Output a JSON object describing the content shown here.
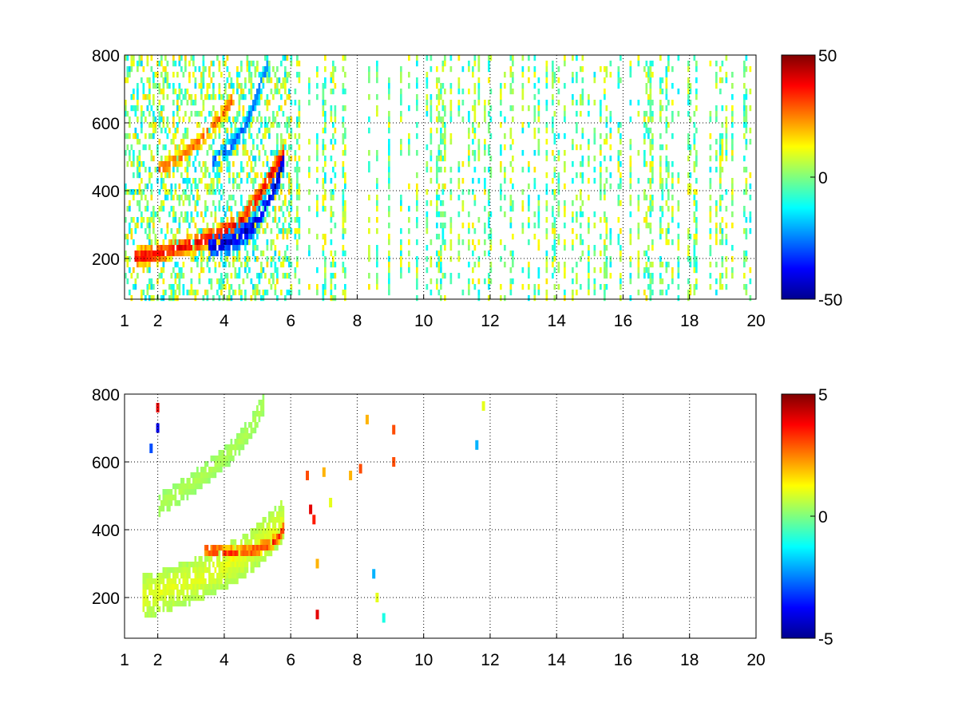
{
  "chart_data": [
    {
      "type": "heatmap",
      "title": "",
      "xlabel": "",
      "ylabel": "",
      "xlim": [
        1,
        20
      ],
      "ylim": [
        80,
        800
      ],
      "grid": true,
      "grid_style": "dotted",
      "xticks": [
        1,
        2,
        4,
        6,
        8,
        10,
        12,
        14,
        16,
        18,
        20
      ],
      "yticks": [
        200,
        400,
        600,
        800
      ],
      "colormap": "jet",
      "colorbar": {
        "min": -50,
        "max": 50,
        "ticks": [
          50,
          0,
          -50
        ]
      },
      "features": [
        {
          "kind": "ridge",
          "x": [
            1.3,
            2,
            3,
            3.7,
            4.5,
            5.0,
            5.4,
            5.8
          ],
          "y": [
            210,
            225,
            250,
            275,
            320,
            390,
            460,
            520
          ],
          "value": 40,
          "width": 18
        },
        {
          "kind": "ridge",
          "x": [
            3.5,
            4.2,
            4.8,
            5.2,
            5.6,
            5.8
          ],
          "y": [
            240,
            260,
            300,
            360,
            440,
            520
          ],
          "value": -45,
          "width": 22
        },
        {
          "kind": "ridge",
          "x": [
            2.0,
            2.7,
            3.3,
            3.8,
            4.3
          ],
          "y": [
            470,
            510,
            560,
            620,
            690
          ],
          "value": 30,
          "width": 14
        },
        {
          "kind": "ridge",
          "x": [
            3.6,
            4.2,
            4.7,
            5.0,
            5.3
          ],
          "y": [
            490,
            540,
            620,
            700,
            790
          ],
          "value": -30,
          "width": 16
        }
      ],
      "noise_region": {
        "x": [
          6,
          20
        ],
        "y": [
          80,
          800
        ],
        "value_range": [
          -15,
          15
        ]
      }
    },
    {
      "type": "heatmap",
      "title": "",
      "xlabel": "",
      "ylabel": "",
      "xlim": [
        1,
        20
      ],
      "ylim": [
        80,
        800
      ],
      "grid": true,
      "grid_style": "dotted",
      "xticks": [
        1,
        2,
        4,
        6,
        8,
        10,
        12,
        14,
        16,
        18,
        20
      ],
      "yticks": [
        200,
        400,
        600,
        800
      ],
      "colormap": "jet",
      "colorbar": {
        "min": -5,
        "max": 5,
        "ticks": [
          5,
          0,
          -5
        ]
      },
      "features": [
        {
          "kind": "ridge",
          "x": [
            1.5,
            2.2,
            3.0,
            3.8,
            4.6,
            5.2,
            5.8
          ],
          "y": [
            210,
            230,
            255,
            290,
            330,
            380,
            440
          ],
          "value": 1,
          "width": 40
        },
        {
          "kind": "ridge",
          "x": [
            3.4,
            4.2,
            5.0,
            5.6,
            5.8
          ],
          "y": [
            350,
            340,
            350,
            380,
            420
          ],
          "value": 3.5,
          "width": 12
        },
        {
          "kind": "ridge",
          "x": [
            2.0,
            2.8,
            3.5,
            4.2,
            4.8,
            5.2
          ],
          "y": [
            480,
            530,
            580,
            640,
            710,
            790
          ],
          "value": 0.5,
          "width": 20
        }
      ],
      "outliers": [
        {
          "x": 6.5,
          "y": 560,
          "value": 3
        },
        {
          "x": 6.6,
          "y": 460,
          "value": 4
        },
        {
          "x": 6.7,
          "y": 430,
          "value": 3.5
        },
        {
          "x": 6.8,
          "y": 300,
          "value": 2
        },
        {
          "x": 6.8,
          "y": 150,
          "value": 4
        },
        {
          "x": 7.0,
          "y": 570,
          "value": 2
        },
        {
          "x": 7.2,
          "y": 480,
          "value": 1
        },
        {
          "x": 7.8,
          "y": 560,
          "value": 2
        },
        {
          "x": 8.1,
          "y": 580,
          "value": 3
        },
        {
          "x": 8.3,
          "y": 725,
          "value": 2
        },
        {
          "x": 8.5,
          "y": 270,
          "value": -2
        },
        {
          "x": 8.6,
          "y": 200,
          "value": 1
        },
        {
          "x": 8.8,
          "y": 140,
          "value": -1
        },
        {
          "x": 9.1,
          "y": 695,
          "value": 3
        },
        {
          "x": 9.1,
          "y": 600,
          "value": 3
        },
        {
          "x": 11.6,
          "y": 650,
          "value": -2
        },
        {
          "x": 11.8,
          "y": 765,
          "value": 1
        },
        {
          "x": 2.0,
          "y": 700,
          "value": -4
        },
        {
          "x": 2.0,
          "y": 760,
          "value": 4
        },
        {
          "x": 1.8,
          "y": 640,
          "value": -3
        }
      ]
    }
  ]
}
